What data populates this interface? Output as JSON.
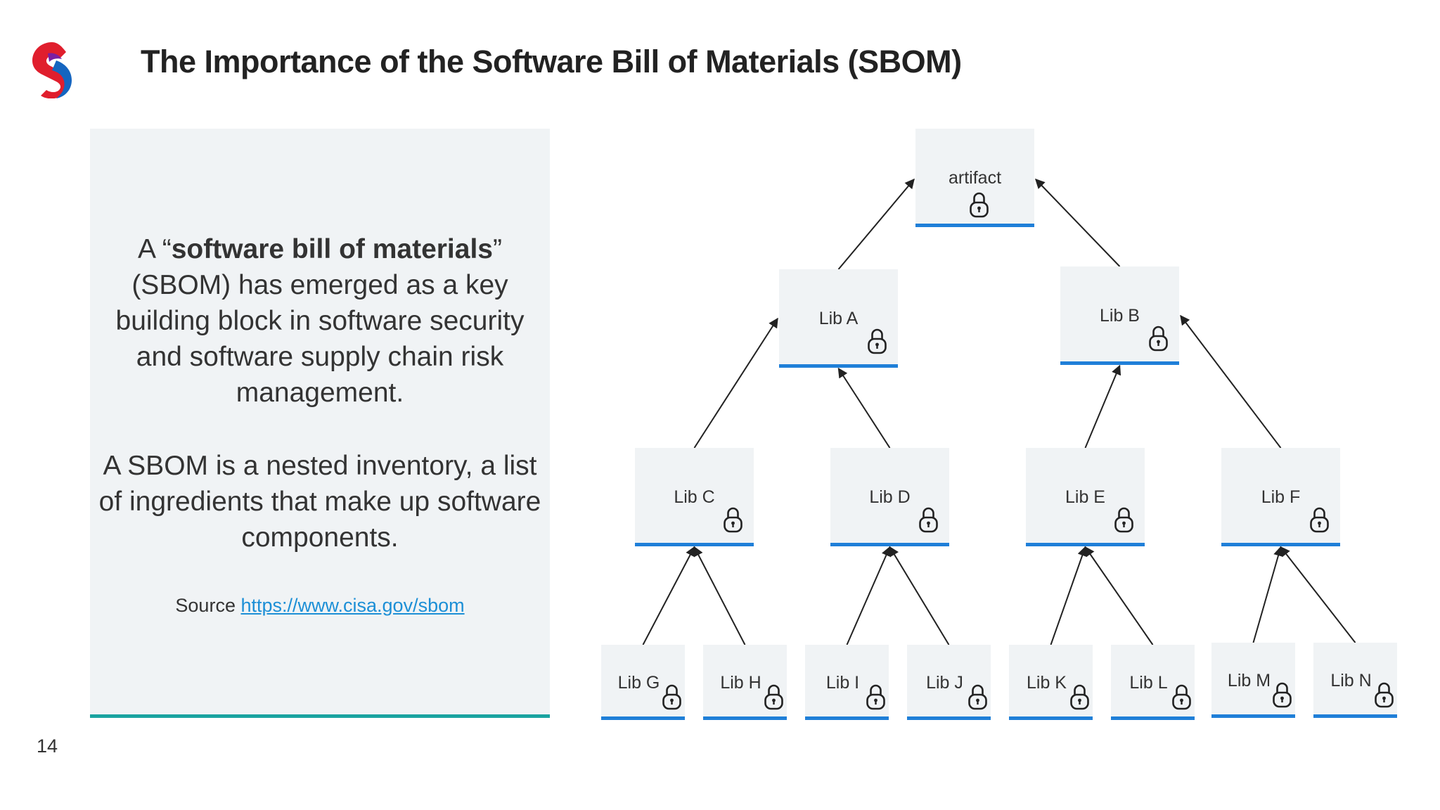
{
  "slide": {
    "title": "The Importance of the Software Bill of Materials (SBOM)",
    "page_number": "14"
  },
  "panel": {
    "p1_prefix": "A “",
    "p1_bold": "software bill of materials",
    "p1_suffix": "” (SBOM) has emerged as a key building block in software security and software supply chain risk management.",
    "p2": "A SBOM is a nested inventory, a list of ingredients that make up software components.",
    "source_label": "Source ",
    "source_link": "https://www.cisa.gov/sbom"
  },
  "colors": {
    "node_fill": "#f0f3f5",
    "node_underline": "#1f7fd8",
    "panel_underline": "#1aa3a0",
    "link": "#1c8fd6",
    "edge": "#222222"
  },
  "diagram": {
    "nodes": [
      {
        "id": "artifact",
        "label": "artifact",
        "icon": "lock-icon"
      },
      {
        "id": "A",
        "label": "Lib A",
        "icon": "lock-icon"
      },
      {
        "id": "B",
        "label": "Lib B",
        "icon": "lock-icon"
      },
      {
        "id": "C",
        "label": "Lib C",
        "icon": "lock-icon"
      },
      {
        "id": "D",
        "label": "Lib D",
        "icon": "lock-icon"
      },
      {
        "id": "E",
        "label": "Lib E",
        "icon": "lock-icon"
      },
      {
        "id": "F",
        "label": "Lib F",
        "icon": "lock-icon"
      },
      {
        "id": "G",
        "label": "Lib G",
        "icon": "lock-icon"
      },
      {
        "id": "H",
        "label": "Lib H",
        "icon": "lock-icon"
      },
      {
        "id": "I",
        "label": "Lib I",
        "icon": "lock-icon"
      },
      {
        "id": "J",
        "label": "Lib J",
        "icon": "lock-icon"
      },
      {
        "id": "K",
        "label": "Lib K",
        "icon": "lock-icon"
      },
      {
        "id": "L",
        "label": "Lib L",
        "icon": "lock-icon"
      },
      {
        "id": "M",
        "label": "Lib M",
        "icon": "lock-icon"
      },
      {
        "id": "N",
        "label": "Lib N",
        "icon": "lock-icon"
      }
    ],
    "edges": [
      {
        "from": "A",
        "to": "artifact"
      },
      {
        "from": "B",
        "to": "artifact"
      },
      {
        "from": "C",
        "to": "A"
      },
      {
        "from": "D",
        "to": "A"
      },
      {
        "from": "E",
        "to": "B"
      },
      {
        "from": "F",
        "to": "B"
      },
      {
        "from": "G",
        "to": "C"
      },
      {
        "from": "H",
        "to": "C"
      },
      {
        "from": "I",
        "to": "D"
      },
      {
        "from": "J",
        "to": "D"
      },
      {
        "from": "K",
        "to": "E"
      },
      {
        "from": "L",
        "to": "E"
      },
      {
        "from": "M",
        "to": "F"
      },
      {
        "from": "N",
        "to": "F"
      }
    ]
  }
}
